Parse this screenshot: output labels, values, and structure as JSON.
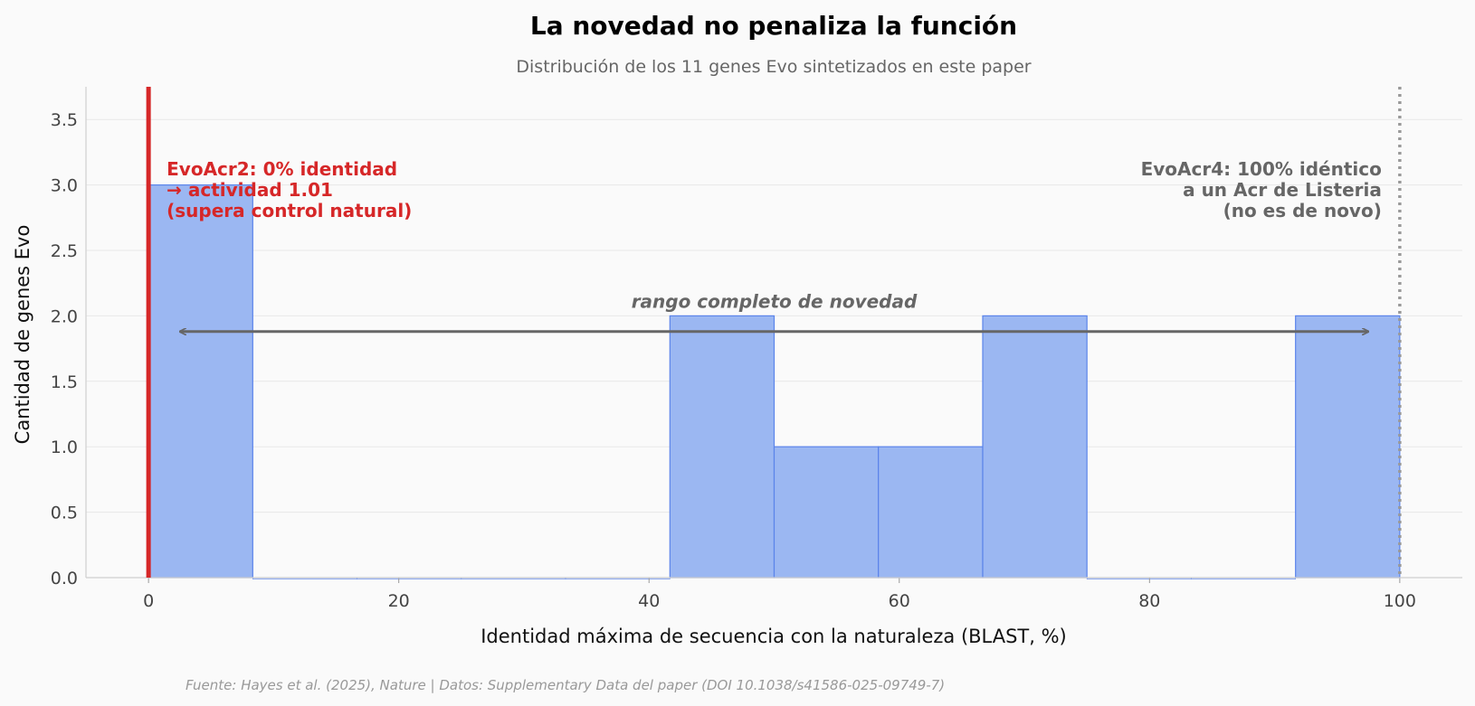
{
  "chart_data": {
    "type": "bar",
    "title": "La novedad no penaliza la función",
    "subtitle": "Distribución de los 11 genes Evo sintetizados en este paper",
    "xlabel": "Identidad máxima de secuencia con la naturaleza (BLAST, %)",
    "ylabel": "Cantidad de genes Evo",
    "xlim": [
      -5,
      105
    ],
    "ylim": [
      0,
      3.75
    ],
    "xticks": [
      0,
      20,
      40,
      60,
      80,
      100
    ],
    "yticks": [
      0.0,
      0.5,
      1.0,
      1.5,
      2.0,
      2.5,
      3.0,
      3.5
    ],
    "ytick_labels": [
      "0.0",
      "0.5",
      "1.0",
      "1.5",
      "2.0",
      "2.5",
      "3.0",
      "3.5"
    ],
    "grid": "horizontal",
    "bins": [
      {
        "x0": 0.0,
        "x1": 8.33,
        "count": 3
      },
      {
        "x0": 8.33,
        "x1": 16.67,
        "count": 0
      },
      {
        "x0": 16.67,
        "x1": 25.0,
        "count": 0
      },
      {
        "x0": 25.0,
        "x1": 33.33,
        "count": 0
      },
      {
        "x0": 33.33,
        "x1": 41.67,
        "count": 0
      },
      {
        "x0": 41.67,
        "x1": 50.0,
        "count": 2
      },
      {
        "x0": 50.0,
        "x1": 58.33,
        "count": 1
      },
      {
        "x0": 58.33,
        "x1": 66.67,
        "count": 1
      },
      {
        "x0": 66.67,
        "x1": 75.0,
        "count": 2
      },
      {
        "x0": 75.0,
        "x1": 83.33,
        "count": 0
      },
      {
        "x0": 83.33,
        "x1": 91.67,
        "count": 0
      },
      {
        "x0": 91.67,
        "x1": 100.0,
        "count": 2
      }
    ],
    "reference_lines": [
      {
        "x": 0,
        "style": "solid",
        "color": "#d62728"
      },
      {
        "x": 100,
        "style": "dotted",
        "color": "#999999"
      }
    ],
    "annotations": {
      "left": {
        "lines": [
          "EvoAcr2: 0% identidad",
          "→ actividad 1.01",
          "(supera control natural)"
        ],
        "color": "#d62728"
      },
      "right": {
        "lines": [
          "EvoAcr4: 100% idéntico",
          "a un Acr de Listeria",
          "(no es de novo)"
        ],
        "color": "#666666"
      },
      "range": {
        "label": "rango completo de novedad",
        "from": 2.5,
        "to": 97.5,
        "y": 1.88
      }
    },
    "colors": {
      "bar_fill": "#9bb7f2",
      "bar_edge": "#5b84ea",
      "background": "#fafafa",
      "arrow": "#666666"
    }
  },
  "footer": "Fuente: Hayes et al. (2025), Nature | Datos: Supplementary Data del paper (DOI 10.1038/s41586-025-09749-7)"
}
